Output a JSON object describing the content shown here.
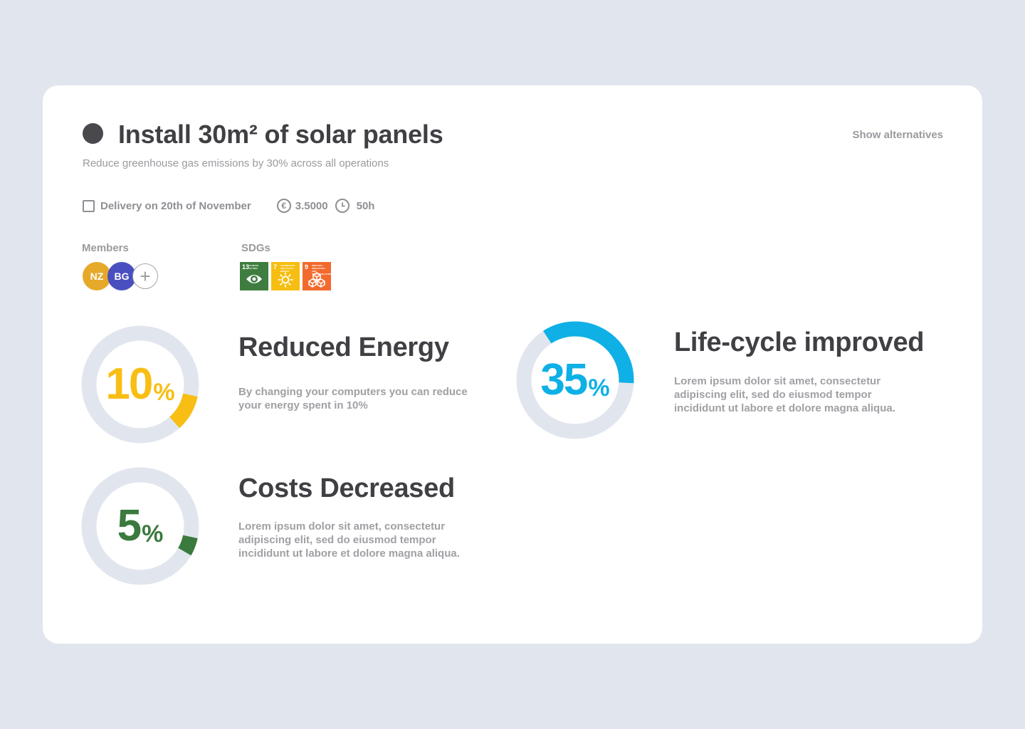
{
  "task": {
    "title": "Install 30m² of solar panels",
    "subtitle": "Reduce greenhouse gas emissions by 30% across all operations",
    "show_alternatives_label": "Show alternatives",
    "delivery_label": "Delivery on 20th of November",
    "cost_icon": "€",
    "cost_value": "3.5000",
    "time_value": "50h"
  },
  "members": {
    "label": "Members",
    "people": [
      {
        "initials": "NZ",
        "color": "#e6a92a"
      },
      {
        "initials": "BG",
        "color": "#4a4fbf"
      }
    ],
    "add_label": "+"
  },
  "sdgs": {
    "label": "SDGs",
    "goals": [
      {
        "number": "13",
        "text": "CLIMATE ACTION",
        "color": "#3e7d3f"
      },
      {
        "number": "7",
        "text": "AFFORDABLE AND CLEAN ENERGY",
        "color": "#f6bd12"
      },
      {
        "number": "9",
        "text": "INDUSTRY, INNOVATION AND INFRASTRUCTURE",
        "color": "#f26a2d"
      }
    ]
  },
  "metrics": [
    {
      "title": "Reduced Energy",
      "description_lines": [
        "By changing your computers you can reduce",
        "your energy spent in 10%"
      ],
      "value": "10",
      "unit": "%",
      "fraction": 0.1,
      "color": "#f8be14"
    },
    {
      "title": "Costs Decreased",
      "description_lines": [
        "Lorem ipsum dolor sit amet, consectetur",
        "adipiscing elit, sed do eiusmod tempor",
        "incididunt ut labore et dolore magna aliqua."
      ],
      "value": "5",
      "unit": "%",
      "fraction": 0.05,
      "color": "#3b7a3e"
    },
    {
      "title": "Life-cycle improved",
      "description_lines": [
        "Lorem ipsum dolor sit amet, consectetur",
        "adipiscing elit, sed do eiusmod tempor",
        "incididunt ut labore et dolore magna aliqua."
      ],
      "value": "35",
      "unit": "%",
      "fraction": 0.35,
      "color": "#0eb0e6"
    }
  ],
  "colors": {
    "track": "#e1e6ee",
    "text": "#3f3f44",
    "muted": "#9a9a9f"
  }
}
